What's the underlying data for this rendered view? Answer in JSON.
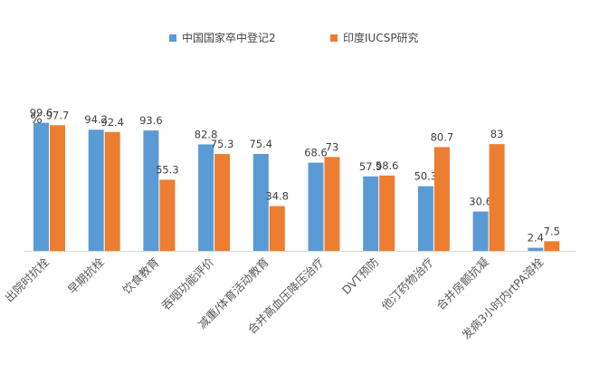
{
  "chart_data": {
    "type": "bar",
    "y_unit_label": "%",
    "categories": [
      "出院时抗栓",
      "早期抗栓",
      "饮食教育",
      "吞咽功能评价",
      "减重/体育活动教育",
      "合并高血压降压治疗",
      "DVT预防",
      "他汀药物治疗",
      "合并房颤抗凝",
      "发病3小时内rtPA溶栓"
    ],
    "series": [
      {
        "name": "中国国家卒中登记2",
        "color": "#5b9bd5",
        "values": [
          99.6,
          94.2,
          93.6,
          82.8,
          75.4,
          68.6,
          57.9,
          50.3,
          30.6,
          2.4
        ],
        "labels": [
          "99.6",
          "94.2",
          "93.6",
          "82.8",
          "75.4",
          "68.6",
          "57.9",
          "50.3",
          "30.6",
          "2.4"
        ]
      },
      {
        "name": "印度IUCSP研究",
        "color": "#ed7d31",
        "values": [
          97.7,
          92.4,
          55.3,
          75.3,
          34.8,
          73,
          58.6,
          80.7,
          83,
          7.5
        ],
        "labels": [
          "97.7",
          "92.4",
          "55.3",
          "75.3",
          "34.8",
          "73",
          "58.6",
          "80.7",
          "83",
          "7.5"
        ]
      }
    ],
    "ylim": [
      0,
      100
    ],
    "grid": false,
    "legend_position": "top"
  }
}
